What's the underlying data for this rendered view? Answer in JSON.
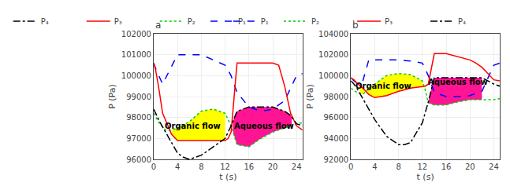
{
  "chart_data": [
    {
      "type": "line",
      "title": "a",
      "xlabel": "t (s)",
      "ylabel": "P (Pa)",
      "xlim": [
        0,
        25
      ],
      "ylim": [
        96000,
        102000
      ],
      "xticks": [
        0,
        4,
        8,
        12,
        16,
        20,
        24
      ],
      "yticks": [
        96000,
        97000,
        98000,
        99000,
        100000,
        101000,
        102000
      ],
      "grid": true,
      "legend": "upper right",
      "series": [
        {
          "name": "P₁",
          "color": "#0000FF",
          "line_style": "dashed",
          "x": [
            0,
            0.5,
            1.5,
            4,
            8,
            12,
            13,
            14,
            16,
            18,
            20,
            22,
            24,
            25
          ],
          "values": [
            100600,
            100200,
            99600,
            101000,
            101000,
            100500,
            100000,
            99200,
            98500,
            98300,
            98400,
            98800,
            100000,
            100100
          ]
        },
        {
          "name": "P₂",
          "color": "#00CC00",
          "line_style": "dotted",
          "x": [
            0,
            1,
            2,
            3,
            4,
            6,
            8,
            10,
            12,
            13,
            14,
            16,
            18,
            20,
            22,
            24,
            25
          ],
          "values": [
            98200,
            97700,
            97400,
            97400,
            97500,
            97800,
            98300,
            98400,
            98200,
            97600,
            96700,
            96600,
            97000,
            97300,
            97500,
            97700,
            97750
          ]
        },
        {
          "name": "P₃",
          "color": "#FF0000",
          "line_style": "solid",
          "x": [
            0,
            0.3,
            0.8,
            1.5,
            3,
            4,
            12,
            12.5,
            13,
            14,
            16,
            20,
            21,
            22,
            23,
            24,
            25
          ],
          "values": [
            100600,
            100300,
            99500,
            98200,
            97200,
            96900,
            96900,
            97000,
            97300,
            100600,
            100600,
            100600,
            100500,
            99500,
            98200,
            97600,
            97400
          ]
        },
        {
          "name": "P₄",
          "color": "#000000",
          "line_style": "dashdot",
          "x": [
            0,
            1,
            2,
            4,
            5,
            6,
            8,
            10,
            12,
            13,
            14,
            16,
            18,
            20,
            22,
            23,
            24,
            25
          ],
          "values": [
            98400,
            97800,
            97300,
            96300,
            96100,
            96000,
            96200,
            96600,
            97000,
            97600,
            98300,
            98500,
            98500,
            98500,
            98300,
            98100,
            97700,
            97600
          ]
        }
      ],
      "fills": [
        {
          "lower": "P₃",
          "upper": "P₂",
          "xmin": 3.0,
          "xmax": 12.0,
          "color": "#FFFF00"
        },
        {
          "lower": "P₂",
          "upper": "P₄",
          "xmin": 13.3,
          "xmax": 23.2,
          "color": "#FF1493"
        }
      ],
      "annotations": [
        {
          "text": "Organic flow",
          "x": 6.5,
          "y": 97600
        },
        {
          "text": "Aqueous flow",
          "x": 18.5,
          "y": 97600
        }
      ]
    },
    {
      "type": "line",
      "title": "b",
      "xlabel": "t (s)",
      "ylabel": "P (Pa)",
      "xlim": [
        0,
        25
      ],
      "ylim": [
        92000,
        104000
      ],
      "xticks": [
        0,
        4,
        8,
        12,
        16,
        20,
        24
      ],
      "yticks": [
        92000,
        94000,
        96000,
        98000,
        100000,
        102000,
        104000
      ],
      "grid": true,
      "legend": "upper right",
      "series": [
        {
          "name": "P₁",
          "color": "#0000FF",
          "line_style": "dashed",
          "x": [
            0,
            0.5,
            1,
            2,
            3,
            5,
            8,
            10,
            12,
            13,
            14,
            16,
            18,
            20,
            22,
            24,
            25
          ],
          "values": [
            99800,
            99500,
            99300,
            99500,
            101500,
            101500,
            101500,
            101400,
            101200,
            100000,
            98400,
            98000,
            98000,
            98100,
            98500,
            101000,
            101200
          ]
        },
        {
          "name": "P₂",
          "color": "#00CC00",
          "line_style": "dotted",
          "x": [
            0,
            1,
            2,
            3,
            4,
            6,
            8,
            10,
            12,
            12.5,
            13,
            14,
            16,
            18,
            20,
            22,
            24,
            25
          ],
          "values": [
            98800,
            98400,
            98200,
            98800,
            99200,
            100000,
            100200,
            100100,
            99500,
            98600,
            97400,
            97200,
            97200,
            97500,
            97700,
            97700,
            97700,
            97800
          ]
        },
        {
          "name": "P₃",
          "color": "#FF0000",
          "line_style": "solid",
          "x": [
            0,
            0.5,
            1,
            2,
            3,
            4,
            6,
            8,
            10,
            12,
            12.5,
            13,
            14,
            16,
            18,
            20,
            21,
            22,
            24,
            25
          ],
          "values": [
            99800,
            99600,
            99300,
            98800,
            98200,
            97900,
            98100,
            98500,
            98800,
            99000,
            99000,
            99200,
            102100,
            102100,
            101800,
            101500,
            101200,
            100800,
            99600,
            99500
          ]
        },
        {
          "name": "P₄",
          "color": "#000000",
          "line_style": "dashdot",
          "x": [
            0,
            0.5,
            1,
            2,
            4,
            6,
            8,
            9,
            10,
            12,
            13,
            14,
            16,
            18,
            20,
            22,
            24,
            25
          ],
          "values": [
            99500,
            99200,
            98800,
            97800,
            95800,
            94200,
            93400,
            93400,
            93600,
            95500,
            97500,
            99800,
            99800,
            99800,
            99800,
            99800,
            99200,
            99000
          ]
        }
      ],
      "fills": [
        {
          "lower": "P₃",
          "upper": "P₂",
          "xmin": 1.5,
          "xmax": 12.5,
          "color": "#FFFF00"
        },
        {
          "lower": "P₂",
          "upper": "P₄",
          "xmin": 13.0,
          "xmax": 22.0,
          "color": "#FF1493"
        }
      ],
      "annotations": [
        {
          "text": "Organic flow",
          "x": 5.5,
          "y": 99000
        },
        {
          "text": "Aqueous flow",
          "x": 18.0,
          "y": 99400
        }
      ]
    }
  ]
}
